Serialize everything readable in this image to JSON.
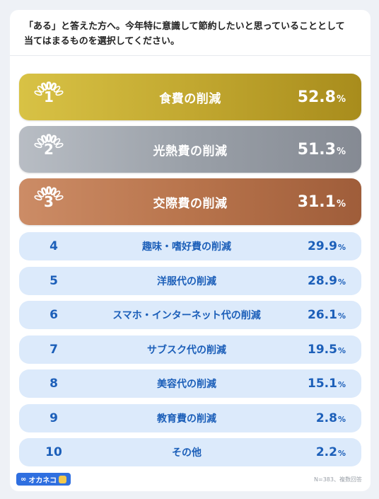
{
  "question": {
    "line1": "「ある」と答えた方へ。今年特に意識して節約したいと思っていることとして",
    "line2": "当てはまるものを選択してください。"
  },
  "chart_data": {
    "type": "table",
    "unit": "%",
    "rows": [
      {
        "rank": "1",
        "label": "食費の削減",
        "value": 52.8
      },
      {
        "rank": "2",
        "label": "光熱費の削減",
        "value": 51.3
      },
      {
        "rank": "3",
        "label": "交際費の削減",
        "value": 31.1
      },
      {
        "rank": "4",
        "label": "趣味・嗜好費の削減",
        "value": 29.9
      },
      {
        "rank": "5",
        "label": "洋服代の削減",
        "value": 28.9
      },
      {
        "rank": "6",
        "label": "スマホ・インターネット代の削減",
        "value": 26.1
      },
      {
        "rank": "7",
        "label": "サブスク代の削減",
        "value": 19.5
      },
      {
        "rank": "8",
        "label": "美容代の削減",
        "value": 15.1
      },
      {
        "rank": "9",
        "label": "教育費の削減",
        "value": 2.8
      },
      {
        "rank": "10",
        "label": "その他",
        "value": 2.2
      }
    ]
  },
  "colors": {
    "gold": "#c2a830",
    "silver": "#9aa0a8",
    "bronze": "#b8744c",
    "row_bg": "#dceafb",
    "row_text": "#1c5fb9"
  },
  "footer": {
    "logo_text": "オカネコ",
    "logo_icon": "infinity-icon",
    "note": "N=383、複数回答"
  }
}
